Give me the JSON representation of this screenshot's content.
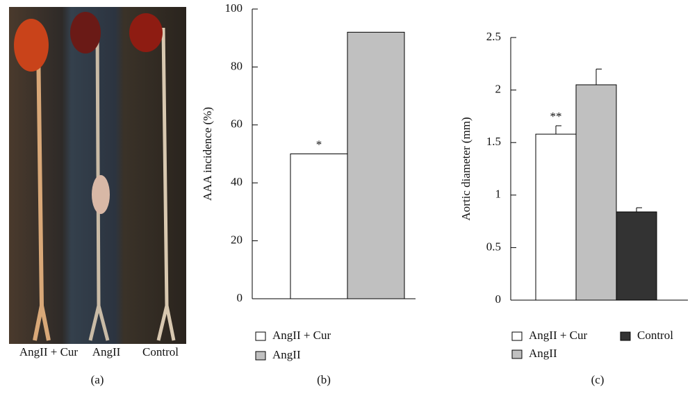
{
  "photo_panel": {
    "labels": [
      "AngII + Cur",
      "AngII",
      "Control"
    ],
    "caption": "(a)"
  },
  "chart_data": [
    {
      "type": "bar",
      "caption": "(b)",
      "y_label": "AAA incidence (%)",
      "ylim": [
        0,
        100
      ],
      "yticks": [
        0,
        20,
        40,
        60,
        80,
        100
      ],
      "series": [
        {
          "name": "AngII + Cur",
          "color": "#ffffff",
          "values": [
            50
          ],
          "annotation": "*"
        },
        {
          "name": "AngII",
          "color": "#c0c0c0",
          "values": [
            92
          ]
        }
      ]
    },
    {
      "type": "bar",
      "caption": "(c)",
      "y_label": "Aortic diameter (mm)",
      "ylim": [
        0,
        2.5
      ],
      "yticks": [
        0,
        0.5,
        1,
        1.5,
        2,
        2.5
      ],
      "series": [
        {
          "name": "AngII + Cur",
          "color": "#ffffff",
          "values": [
            1.58
          ],
          "errors": [
            0.08
          ],
          "annotation": "**"
        },
        {
          "name": "AngII",
          "color": "#c0c0c0",
          "values": [
            2.05
          ],
          "errors": [
            0.15
          ]
        },
        {
          "name": "Control",
          "color": "#333333",
          "values": [
            0.84
          ],
          "errors": [
            0.04
          ]
        }
      ]
    }
  ]
}
